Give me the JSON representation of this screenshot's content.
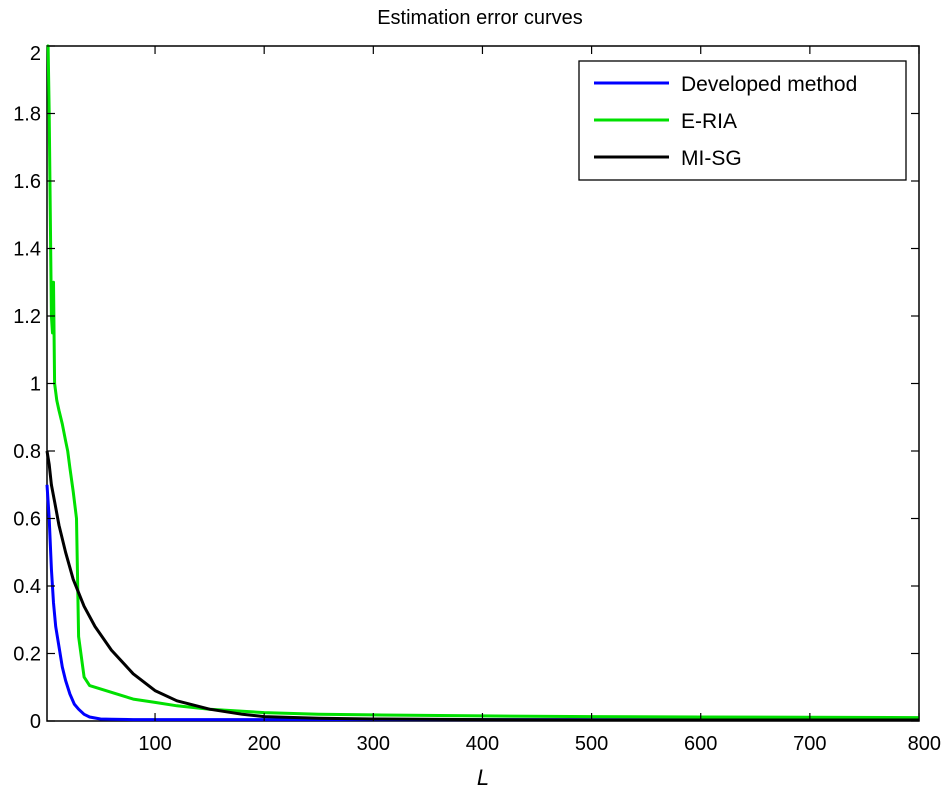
{
  "chart_data": {
    "type": "line",
    "title": "Estimation error curves",
    "xlabel": "L",
    "ylabel": "",
    "xlim": [
      1,
      800
    ],
    "ylim": [
      0,
      2
    ],
    "x_ticks": [
      100,
      200,
      300,
      400,
      500,
      600,
      700,
      800
    ],
    "y_ticks": [
      0,
      0.2,
      0.4,
      0.6,
      0.8,
      1,
      1.2,
      1.4,
      1.6,
      1.8,
      2
    ],
    "grid": false,
    "legend_position": "top-right",
    "series": [
      {
        "name": "Developed method",
        "color": "#0000ff",
        "x": [
          1,
          3,
          5,
          7,
          9,
          12,
          15,
          18,
          22,
          26,
          30,
          35,
          40,
          50,
          60,
          80,
          100,
          150,
          200,
          800
        ],
        "y": [
          0.7,
          0.6,
          0.45,
          0.35,
          0.28,
          0.22,
          0.16,
          0.12,
          0.08,
          0.05,
          0.035,
          0.02,
          0.012,
          0.006,
          0.005,
          0.004,
          0.004,
          0.004,
          0.004,
          0.004
        ]
      },
      {
        "name": "E-RIA",
        "color": "#00e000",
        "x": [
          1,
          2,
          3,
          4,
          5,
          6,
          7,
          8,
          10,
          12,
          15,
          18,
          20,
          22,
          25,
          28,
          30,
          35,
          40,
          50,
          60,
          70,
          80,
          100,
          120,
          150,
          200,
          250,
          300,
          400,
          500,
          600,
          700,
          800
        ],
        "y": [
          2.0,
          2.0,
          1.8,
          1.5,
          1.2,
          1.15,
          1.3,
          1.0,
          0.95,
          0.92,
          0.88,
          0.83,
          0.8,
          0.75,
          0.68,
          0.6,
          0.25,
          0.13,
          0.105,
          0.095,
          0.085,
          0.075,
          0.065,
          0.055,
          0.045,
          0.035,
          0.025,
          0.02,
          0.018,
          0.015,
          0.013,
          0.012,
          0.011,
          0.01
        ]
      },
      {
        "name": "MI-SG",
        "color": "#000000",
        "x": [
          1,
          3,
          5,
          8,
          12,
          18,
          25,
          35,
          45,
          60,
          80,
          100,
          120,
          150,
          180,
          200,
          250,
          300,
          400,
          500,
          600,
          700,
          800
        ],
        "y": [
          0.8,
          0.76,
          0.7,
          0.65,
          0.58,
          0.5,
          0.42,
          0.34,
          0.28,
          0.21,
          0.14,
          0.09,
          0.06,
          0.035,
          0.02,
          0.013,
          0.008,
          0.006,
          0.004,
          0.003,
          0.003,
          0.003,
          0.003
        ]
      }
    ]
  }
}
